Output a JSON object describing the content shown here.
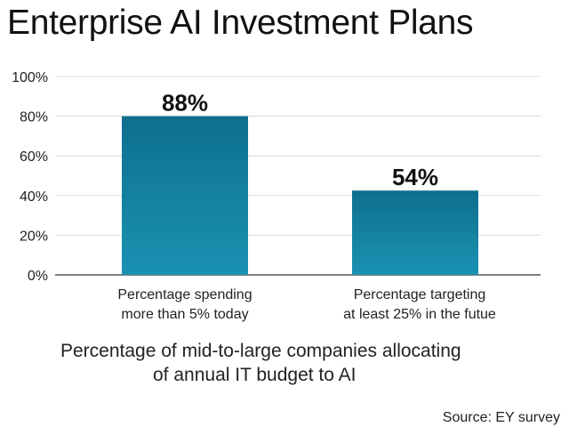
{
  "chart_data": {
    "type": "bar",
    "title": "Enterprise AI Investment Plans",
    "categories": [
      [
        "Percentage spending",
        "more than 5% today"
      ],
      [
        "Percentage targeting",
        "at least 25% in the futue"
      ]
    ],
    "values": [
      88,
      54
    ],
    "value_labels": [
      "88%",
      "54%"
    ],
    "bar_tops": [
      80,
      42.5
    ],
    "ylim": [
      0,
      100
    ],
    "yticks": [
      "0%",
      "20%",
      "40%",
      "60%",
      "80%",
      "100%"
    ],
    "grid": true,
    "subtitle_lines": [
      "Percentage of mid-to-large companies allocating",
      "of annual IT budget to AI"
    ],
    "source": "Source: EY survey",
    "colors": {
      "bar_top": "#0e6f8e",
      "bar_bottom": "#1a92b2",
      "grid": "#d9d9d9",
      "axis": "#333333"
    }
  }
}
